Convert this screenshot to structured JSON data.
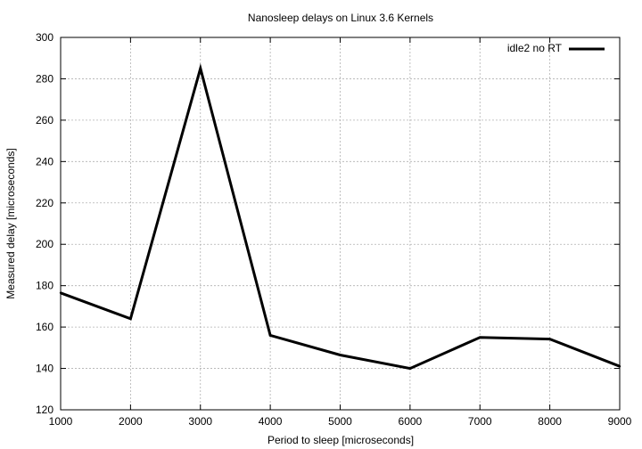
{
  "chart_data": {
    "type": "line",
    "title": "Nanosleep delays on Linux 3.6 Kernels",
    "xlabel": "Period to sleep [microseconds]",
    "ylabel": "Measured delay [microseconds]",
    "xlim": [
      1000,
      9000
    ],
    "ylim": [
      120,
      300
    ],
    "x_ticks": [
      1000,
      2000,
      3000,
      4000,
      5000,
      6000,
      7000,
      8000,
      9000
    ],
    "y_ticks": [
      120,
      140,
      160,
      180,
      200,
      220,
      240,
      260,
      280,
      300
    ],
    "grid": true,
    "legend_position": "top-right",
    "series": [
      {
        "name": "idle2 no RT",
        "color": "#000000",
        "x": [
          1000,
          2000,
          3000,
          4000,
          5000,
          6000,
          7000,
          8000,
          9000
        ],
        "y": [
          176.5,
          164,
          285,
          156,
          146.5,
          140,
          155,
          154.2,
          141
        ]
      }
    ]
  }
}
